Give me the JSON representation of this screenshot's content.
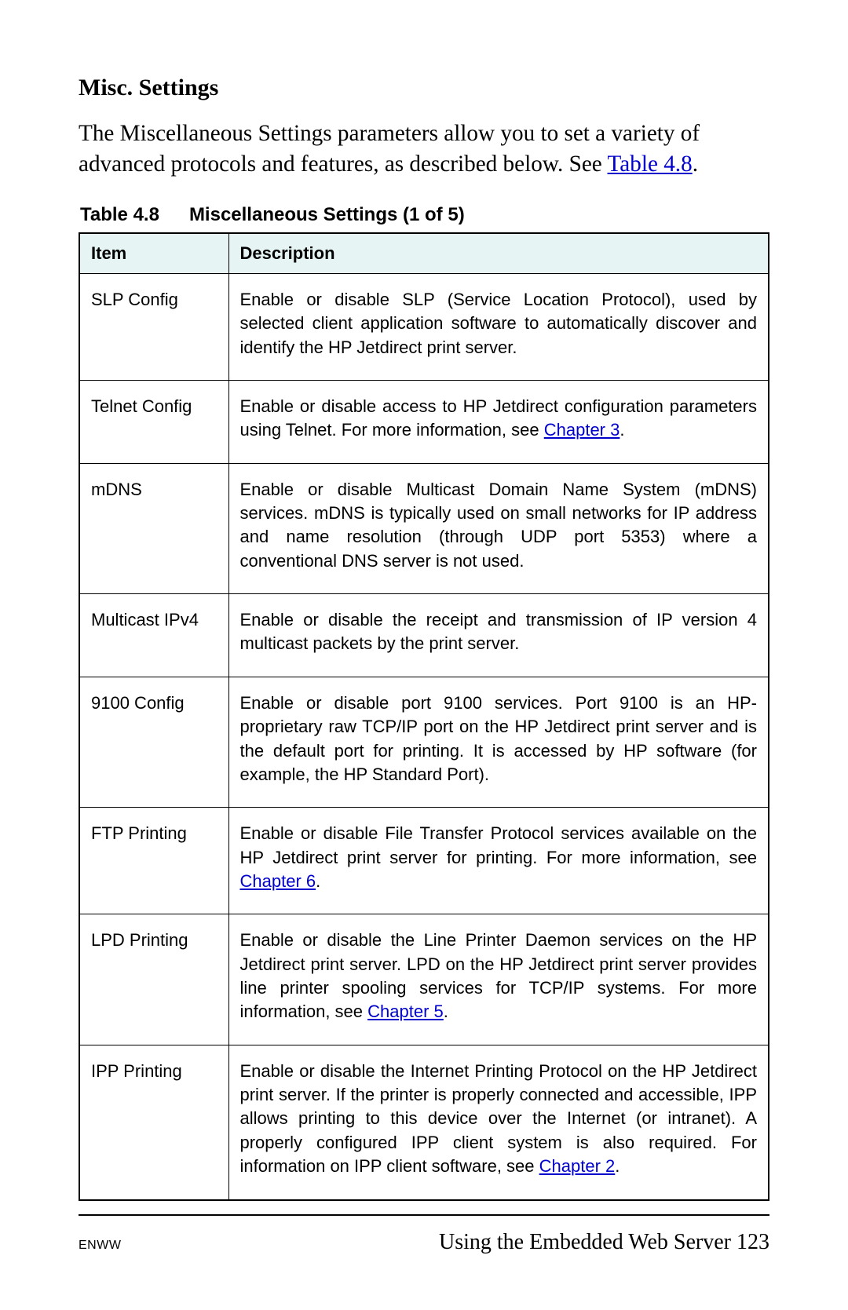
{
  "heading": "Misc. Settings",
  "intro_part1": "The Miscellaneous Settings parameters allow you to set a variety of advanced protocols and features, as described below. See ",
  "intro_link": "Table 4.8",
  "intro_part2": ".",
  "table_caption_label": "Table 4.8",
  "table_caption_title": "Miscellaneous Settings  (1 of 5)",
  "th_item": "Item",
  "th_desc": "Description",
  "rows": [
    {
      "item": "SLP Config",
      "desc": "Enable or disable SLP (Service Location Protocol), used by selected client application software to automatically discover and identify the HP Jetdirect print server."
    },
    {
      "item": "Telnet Config",
      "desc_before": "Enable or disable access to HP Jetdirect configuration parameters using Telnet. For more information, see ",
      "link": "Chapter 3",
      "desc_after": "."
    },
    {
      "item": "mDNS",
      "desc": "Enable or disable Multicast Domain Name System (mDNS) services. mDNS is typically used on small networks for IP address and name resolution (through UDP port 5353) where a conventional DNS server is not used."
    },
    {
      "item": "Multicast IPv4",
      "desc": "Enable or disable the receipt and transmission of IP version 4 multicast packets by the print server."
    },
    {
      "item": "9100 Config",
      "desc": "Enable or disable port 9100 services. Port 9100 is an HP-proprietary raw TCP/IP port on the HP Jetdirect print server and is the default port for printing. It is accessed by HP software (for example, the HP Standard Port)."
    },
    {
      "item": "FTP Printing",
      "desc_before": "Enable or disable File Transfer Protocol services available on the HP Jetdirect print server for printing. For more information, see ",
      "link": "Chapter 6",
      "desc_after": "."
    },
    {
      "item": "LPD Printing",
      "desc_before": "Enable or disable the Line Printer Daemon services on the HP Jetdirect print server. LPD on the HP Jetdirect print server provides line printer spooling services for TCP/IP systems. For more information, see ",
      "link": "Chapter 5",
      "desc_after": "."
    },
    {
      "item": "IPP Printing",
      "desc_before": "Enable or disable the Internet Printing Protocol on the HP Jetdirect print server. If the printer is properly connected and accessible, IPP allows printing to this device over the Internet (or intranet). A properly configured IPP client system is also required. For information on IPP client software, see ",
      "link": "Chapter 2",
      "desc_after": "."
    }
  ],
  "footer_left": "ENWW",
  "footer_right_text": "Using the Embedded Web Server ",
  "footer_page": "123"
}
